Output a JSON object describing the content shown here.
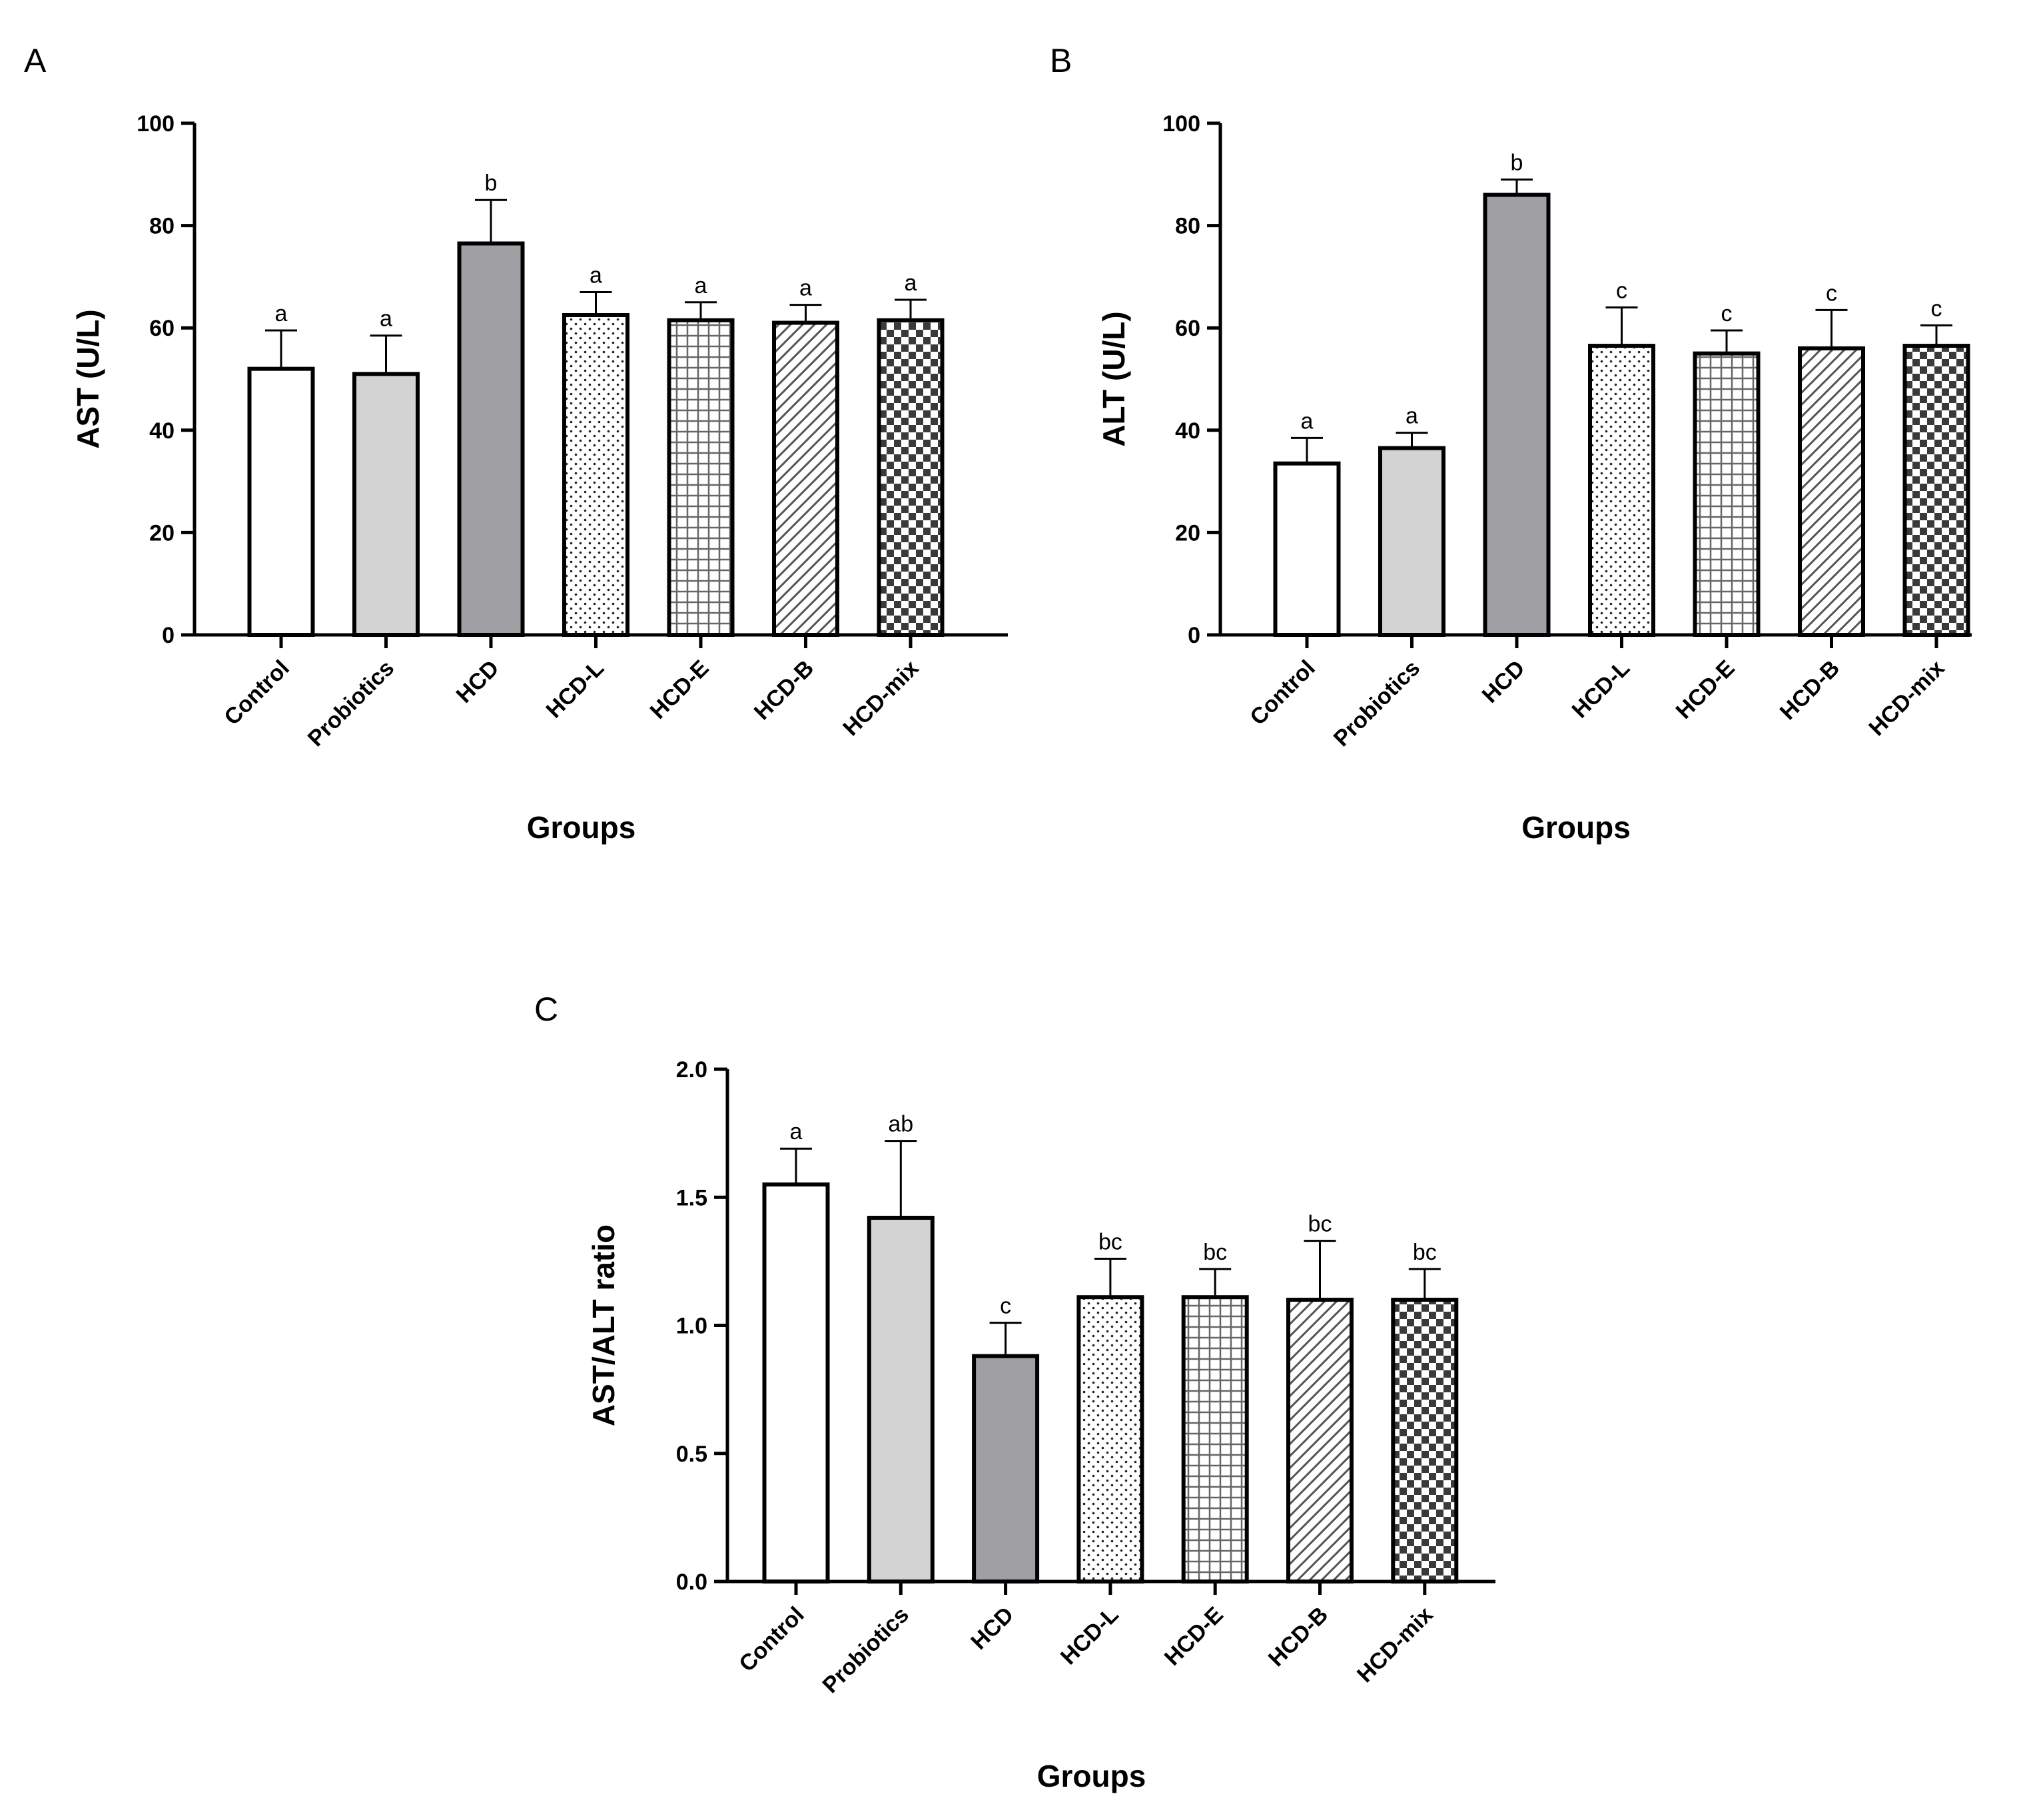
{
  "chart_data": [
    {
      "panel": "A",
      "type": "bar",
      "categories": [
        "Control",
        "Probiotics",
        "HCD",
        "HCD-L",
        "HCD-E",
        "HCD-B",
        "HCD-mix"
      ],
      "values": [
        52,
        51,
        76.5,
        62.5,
        61.5,
        61,
        61.5
      ],
      "errors": [
        7.5,
        7.5,
        8.5,
        4.5,
        3.5,
        3.5,
        4
      ],
      "significance": [
        "a",
        "a",
        "b",
        "a",
        "a",
        "a",
        "a"
      ],
      "ylabel": "AST (U/L)",
      "xlabel": "Groups",
      "ylim": [
        0,
        100
      ],
      "yticks": [
        0,
        20,
        40,
        60,
        80,
        100
      ],
      "ytick_labels": [
        "0",
        "20",
        "40",
        "60",
        "80",
        "100"
      ]
    },
    {
      "panel": "B",
      "type": "bar",
      "categories": [
        "Control",
        "Probiotics",
        "HCD",
        "HCD-L",
        "HCD-E",
        "HCD-B",
        "HCD-mix"
      ],
      "values": [
        33.5,
        36.5,
        86,
        56.5,
        55,
        56,
        56.5
      ],
      "errors": [
        5,
        3,
        3,
        7.5,
        4.5,
        7.5,
        4
      ],
      "significance": [
        "a",
        "a",
        "b",
        "c",
        "c",
        "c",
        "c"
      ],
      "ylabel": "ALT (U/L)",
      "xlabel": "Groups",
      "ylim": [
        0,
        100
      ],
      "yticks": [
        0,
        20,
        40,
        60,
        80,
        100
      ],
      "ytick_labels": [
        "0",
        "20",
        "40",
        "60",
        "80",
        "100"
      ]
    },
    {
      "panel": "C",
      "type": "bar",
      "categories": [
        "Control",
        "Probiotics",
        "HCD",
        "HCD-L",
        "HCD-E",
        "HCD-B",
        "HCD-mix"
      ],
      "values": [
        1.55,
        1.42,
        0.88,
        1.11,
        1.11,
        1.1,
        1.1
      ],
      "errors": [
        0.14,
        0.3,
        0.13,
        0.15,
        0.11,
        0.23,
        0.12
      ],
      "significance": [
        "a",
        "ab",
        "c",
        "bc",
        "bc",
        "bc",
        "bc"
      ],
      "ylabel": "AST/ALT ratio",
      "xlabel": "Groups",
      "ylim": [
        0,
        2
      ],
      "yticks": [
        0,
        0.5,
        1,
        1.5,
        2
      ],
      "ytick_labels": [
        "0.0",
        "0.5",
        "1.0",
        "1.5",
        "2.0"
      ]
    }
  ],
  "bar_styles": [
    {
      "fill": "#ffffff",
      "pattern": "none"
    },
    {
      "fill": "#d3d3d3",
      "pattern": "none"
    },
    {
      "fill": "#a0a0a4",
      "pattern": "none"
    },
    {
      "fill": "#ffffff",
      "pattern": "dots"
    },
    {
      "fill": "#ffffff",
      "pattern": "grid"
    },
    {
      "fill": "#ffffff",
      "pattern": "diagonal"
    },
    {
      "fill": "#ffffff",
      "pattern": "checker"
    }
  ]
}
